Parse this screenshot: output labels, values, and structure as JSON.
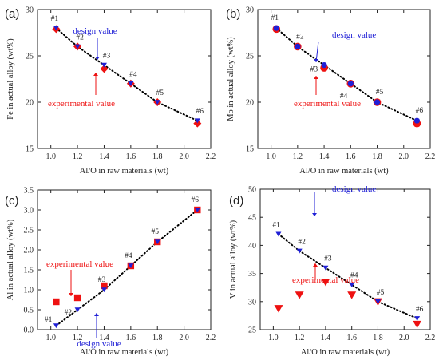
{
  "colors": {
    "design": "#1f1fd6",
    "experimental": "#ee1111",
    "trend": "#000000"
  },
  "chart_data": [
    {
      "type": "scatter",
      "panel_label": "(a)",
      "xlabel": "Al/O in raw materials (wt)",
      "ylabel": "Fe in actual alloy (wt%)",
      "xlim": [
        0.9,
        2.2
      ],
      "ylim": [
        15,
        30
      ],
      "xticks": [
        "1.0",
        "1.2",
        "1.4",
        "1.6",
        "1.8",
        "2.0",
        "2.2"
      ],
      "yticks": [
        "15",
        "20",
        "25",
        "30"
      ],
      "point_labels": [
        "#1",
        "#2",
        "#3",
        "#4",
        "#5",
        "#6"
      ],
      "x": [
        1.04,
        1.2,
        1.4,
        1.6,
        1.8,
        2.1
      ],
      "series": [
        {
          "role": "experimental",
          "marker": "diamond",
          "values": [
            27.9,
            26.0,
            23.6,
            22.0,
            20.0,
            17.7
          ]
        },
        {
          "role": "design",
          "marker": "triangle-down",
          "values": [
            28.0,
            26.0,
            24.0,
            22.0,
            20.0,
            18.0
          ]
        }
      ],
      "annotations": [
        {
          "text": "design value",
          "role": "design",
          "target_series": 1,
          "target_index": 2
        },
        {
          "text": "experimental value",
          "role": "experimental",
          "target_series": 0,
          "target_index": 2
        }
      ]
    },
    {
      "type": "scatter",
      "panel_label": "(b)",
      "xlabel": "Al/O in raw materials (wt)",
      "ylabel": "Mo in actual alloy (wt%)",
      "xlim": [
        0.9,
        2.2
      ],
      "ylim": [
        15,
        30
      ],
      "xticks": [
        "1.0",
        "1.2",
        "1.4",
        "1.6",
        "1.8",
        "2.0",
        "2.2"
      ],
      "yticks": [
        "15",
        "20",
        "25",
        "30"
      ],
      "point_labels": [
        "#1",
        "#2",
        "#3",
        "#4",
        "#5",
        "#6"
      ],
      "x": [
        1.04,
        1.2,
        1.4,
        1.6,
        1.8,
        2.1
      ],
      "series": [
        {
          "role": "experimental",
          "marker": "circle",
          "values": [
            27.9,
            26.0,
            23.7,
            22.0,
            20.0,
            17.7
          ]
        },
        {
          "role": "design",
          "marker": "circle-small",
          "values": [
            28.0,
            26.0,
            24.0,
            22.0,
            20.0,
            18.0
          ]
        }
      ],
      "annotations": [
        {
          "text": "design value",
          "role": "design",
          "target_series": 1,
          "target_index": 2
        },
        {
          "text": "experimental value",
          "role": "experimental",
          "target_series": 0,
          "target_index": 2
        }
      ]
    },
    {
      "type": "scatter",
      "panel_label": "(c)",
      "xlabel": "Al/O in raw materials (wt)",
      "ylabel": "Al in actual alloy (wt%)",
      "xlim": [
        0.9,
        2.2
      ],
      "ylim": [
        0.0,
        3.5
      ],
      "xticks": [
        "1.0",
        "1.2",
        "1.4",
        "1.6",
        "1.8",
        "2.0",
        "2.2"
      ],
      "yticks": [
        "0.0",
        "0.5",
        "1.0",
        "1.5",
        "2.0",
        "2.5",
        "3.0",
        "3.5"
      ],
      "point_labels": [
        "#1",
        "#2",
        "#3",
        "#4",
        "#5",
        "#6"
      ],
      "x": [
        1.04,
        1.2,
        1.4,
        1.6,
        1.8,
        2.1
      ],
      "series": [
        {
          "role": "experimental",
          "marker": "square",
          "values": [
            0.7,
            0.8,
            1.1,
            1.6,
            2.2,
            3.0
          ]
        },
        {
          "role": "design",
          "marker": "triangle-down",
          "values": [
            0.1,
            0.5,
            1.0,
            1.6,
            2.2,
            3.0
          ]
        }
      ],
      "annotations": [
        {
          "text": "experimental value",
          "role": "experimental",
          "target_series": 0,
          "target_index": 1
        },
        {
          "text": "design value",
          "role": "design",
          "target_series": 1,
          "target_index": 2
        }
      ]
    },
    {
      "type": "scatter",
      "panel_label": "(d)",
      "xlabel": "Al/O in raw materials (wt)",
      "ylabel": "V in actual alloy (wt%)",
      "xlim": [
        0.9,
        2.2
      ],
      "ylim": [
        25,
        50
      ],
      "xticks": [
        "1.0",
        "1.2",
        "1.4",
        "1.6",
        "1.8",
        "2.0",
        "2.2"
      ],
      "yticks": [
        "25",
        "30",
        "35",
        "40",
        "45",
        "50"
      ],
      "point_labels": [
        "#1",
        "#2",
        "#3",
        "#4",
        "#5",
        "#6"
      ],
      "x": [
        1.04,
        1.2,
        1.4,
        1.6,
        1.8,
        2.1
      ],
      "series": [
        {
          "role": "experimental",
          "marker": "triangle-down-large",
          "values": [
            28.8,
            31.2,
            33.5,
            31.2,
            30.0,
            26.0
          ]
        },
        {
          "role": "design",
          "marker": "triangle-down",
          "values": [
            42.0,
            39.0,
            36.0,
            33.0,
            30.0,
            27.0
          ]
        }
      ],
      "annotations": [
        {
          "text": "design value",
          "role": "design",
          "target_series": 1,
          "target_index": 2
        },
        {
          "text": "experimental value",
          "role": "experimental",
          "target_series": 0,
          "target_index": 2
        }
      ]
    }
  ]
}
